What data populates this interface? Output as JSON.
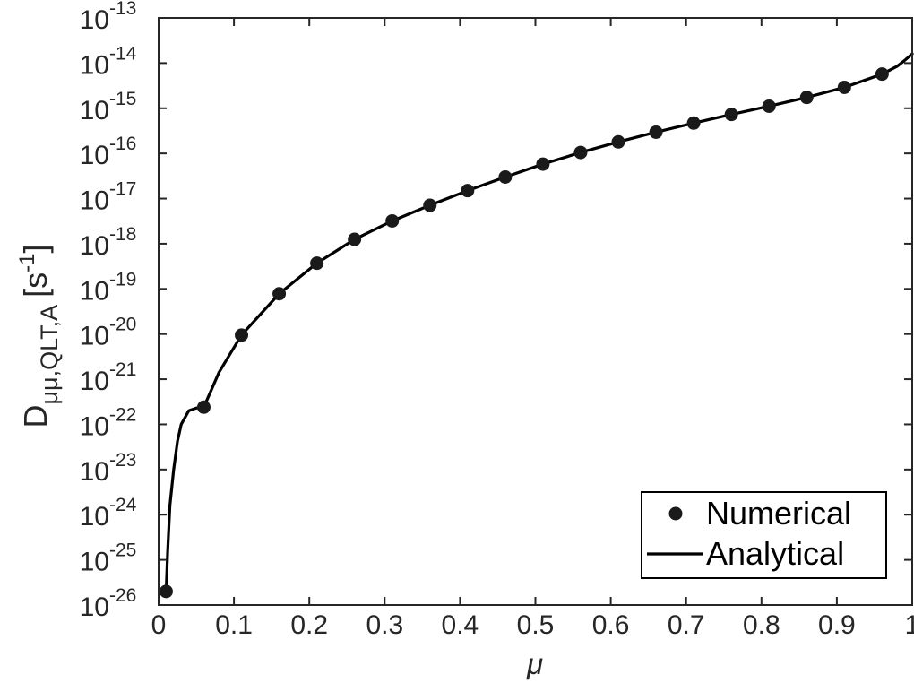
{
  "chart_data": {
    "type": "scatter",
    "xlabel": "μ",
    "ylabel": {
      "main": "D",
      "subscript": "μμ,QLT,A",
      "unit_prefix": "[s",
      "unit_exponent": "-1",
      "unit_suffix": "]"
    },
    "xlim": [
      0,
      1
    ],
    "ylim_log10": [
      -26,
      -13
    ],
    "yscale": "log",
    "grid": false,
    "legend_position": "bottom-right",
    "x_ticks": [
      {
        "value": 0,
        "label": "0"
      },
      {
        "value": 0.1,
        "label": "0.1"
      },
      {
        "value": 0.2,
        "label": "0.2"
      },
      {
        "value": 0.3,
        "label": "0.3"
      },
      {
        "value": 0.4,
        "label": "0.4"
      },
      {
        "value": 0.5,
        "label": "0.5"
      },
      {
        "value": 0.6,
        "label": "0.6"
      },
      {
        "value": 0.7,
        "label": "0.7"
      },
      {
        "value": 0.8,
        "label": "0.8"
      },
      {
        "value": 0.9,
        "label": "0.9"
      },
      {
        "value": 1,
        "label": "1"
      }
    ],
    "y_ticks": [
      {
        "log10": -26,
        "base": "10",
        "exp": "-26"
      },
      {
        "log10": -25,
        "base": "10",
        "exp": "-25"
      },
      {
        "log10": -24,
        "base": "10",
        "exp": "-24"
      },
      {
        "log10": -23,
        "base": "10",
        "exp": "-23"
      },
      {
        "log10": -22,
        "base": "10",
        "exp": "-22"
      },
      {
        "log10": -21,
        "base": "10",
        "exp": "-21"
      },
      {
        "log10": -20,
        "base": "10",
        "exp": "-20"
      },
      {
        "log10": -19,
        "base": "10",
        "exp": "-19"
      },
      {
        "log10": -18,
        "base": "10",
        "exp": "-18"
      },
      {
        "log10": -17,
        "base": "10",
        "exp": "-17"
      },
      {
        "log10": -16,
        "base": "10",
        "exp": "-16"
      },
      {
        "log10": -15,
        "base": "10",
        "exp": "-15"
      },
      {
        "log10": -14,
        "base": "10",
        "exp": "-14"
      },
      {
        "log10": -13,
        "base": "10",
        "exp": "-13"
      }
    ],
    "series": [
      {
        "name": "Numerical",
        "style": "markers",
        "color": "#1a1a1a",
        "x": [
          0.01,
          0.06,
          0.11,
          0.16,
          0.21,
          0.26,
          0.31,
          0.36,
          0.41,
          0.46,
          0.51,
          0.56,
          0.61,
          0.66,
          0.71,
          0.76,
          0.81,
          0.86,
          0.91,
          0.96
        ],
        "y": [
          2e-26,
          2.4e-22,
          9.5e-21,
          7.8e-20,
          3.7e-19,
          1.25e-18,
          3.2e-18,
          7.1e-18,
          1.5e-17,
          3e-17,
          5.8e-17,
          1.05e-16,
          1.8e-16,
          2.95e-16,
          4.7e-16,
          7.3e-16,
          1.11e-15,
          1.74e-15,
          2.9e-15,
          5.7e-15
        ]
      },
      {
        "name": "Analytical",
        "style": "line",
        "color": "#000000",
        "x": [
          0.01,
          0.012,
          0.015,
          0.02,
          0.025,
          0.03,
          0.04,
          0.05,
          0.06,
          0.08,
          0.11,
          0.16,
          0.21,
          0.26,
          0.31,
          0.36,
          0.41,
          0.46,
          0.51,
          0.56,
          0.61,
          0.66,
          0.71,
          0.76,
          0.81,
          0.86,
          0.91,
          0.96,
          0.98,
          0.99,
          1.0
        ],
        "y": [
          2e-26,
          1.5e-25,
          1.6e-24,
          1e-23,
          4.2e-23,
          1e-22,
          2e-22,
          2.3e-22,
          2.4e-22,
          1.4e-21,
          9.5e-21,
          7.8e-20,
          3.7e-19,
          1.25e-18,
          3.2e-18,
          7.1e-18,
          1.5e-17,
          3e-17,
          5.8e-17,
          1.05e-16,
          1.8e-16,
          2.95e-16,
          4.7e-16,
          7.3e-16,
          1.11e-15,
          1.74e-15,
          2.9e-15,
          5.7e-15,
          8.5e-15,
          1.15e-14,
          1.6e-14
        ]
      }
    ]
  }
}
